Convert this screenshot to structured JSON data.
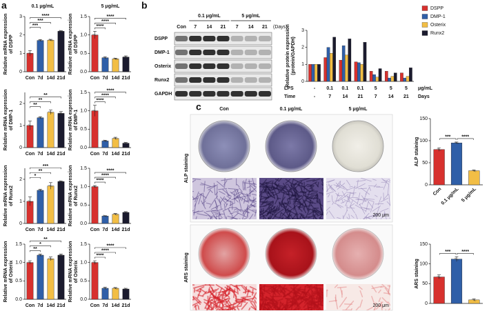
{
  "panel_a": {
    "label": "a",
    "columns": [
      "0.1 μg/mL",
      "5 μg/mL"
    ]
  },
  "panel_b": {
    "label": "b",
    "blot": {
      "groups": [
        "0.1 μg/mL",
        "5 μg/mL"
      ],
      "lanes": [
        "Con",
        "7",
        "14",
        "21",
        "7",
        "14",
        "21"
      ],
      "unit": "(Days)",
      "rows": [
        "DSPP",
        "DMP-1",
        "Osterix",
        "Runx2",
        "GAPDH"
      ]
    }
  },
  "panel_c": {
    "label": "c",
    "columns": [
      "Con",
      "0.1 μg/mL",
      "5 μg/mL"
    ],
    "rows": [
      "ALP staining",
      "ARS staining"
    ],
    "scale_bars": [
      "200 μm",
      "200 μm"
    ]
  },
  "chart_data": [
    {
      "type": "bar",
      "ylabel": [
        "Relative mRNA expression",
        "of DSPP"
      ],
      "categories": [
        "Con",
        "7d",
        "14d",
        "21d"
      ],
      "values": [
        1.0,
        1.7,
        1.72,
        2.2
      ],
      "errors": [
        0.15,
        0.05,
        0.04,
        0.03
      ],
      "colors": [
        "#d7312e",
        "#2f5fa8",
        "#f2be45",
        "#1b1b2e"
      ],
      "ylim": [
        0,
        3
      ],
      "yticks": [
        0,
        1,
        2,
        3
      ],
      "significance": [
        "***",
        "***",
        "****"
      ],
      "comparisons": "vs-first"
    },
    {
      "type": "bar",
      "ylabel": [
        "Relative mRNA expression",
        "of DMP-1"
      ],
      "categories": [
        "Con",
        "7d",
        "14d",
        "21d"
      ],
      "values": [
        1.0,
        1.35,
        1.6,
        1.55
      ],
      "errors": [
        0.2,
        0.05,
        0.1,
        0.08
      ],
      "colors": [
        "#d7312e",
        "#2f5fa8",
        "#f2be45",
        "#1b1b2e"
      ],
      "ylim": [
        0,
        2.5
      ],
      "yticks": [
        0,
        1,
        2
      ],
      "significance": [
        "**",
        "**",
        "**"
      ],
      "comparisons": "vs-first"
    },
    {
      "type": "bar",
      "ylabel": [
        "Relative mRNA expression",
        "of Runx2"
      ],
      "categories": [
        "Con",
        "7d",
        "14d",
        "21d"
      ],
      "values": [
        1.0,
        1.5,
        1.7,
        1.9
      ],
      "errors": [
        0.2,
        0.05,
        0.15,
        0.03
      ],
      "colors": [
        "#d7312e",
        "#2f5fa8",
        "#f2be45",
        "#1b1b2e"
      ],
      "ylim": [
        0,
        2.5
      ],
      "yticks": [
        0,
        1,
        2
      ],
      "significance": [
        "*",
        "**",
        "***"
      ],
      "comparisons": "vs-first"
    },
    {
      "type": "bar",
      "ylabel": [
        "Relative mRNA expression",
        "of Osterix"
      ],
      "categories": [
        "Con",
        "7d",
        "14d",
        "21d"
      ],
      "values": [
        1.0,
        1.2,
        1.1,
        1.2
      ],
      "errors": [
        0.05,
        0.03,
        0.05,
        0.03
      ],
      "colors": [
        "#d7312e",
        "#2f5fa8",
        "#f2be45",
        "#1b1b2e"
      ],
      "ylim": [
        0,
        1.5
      ],
      "yticks": [
        {
          "value": 0,
          "label": "0.0"
        },
        0.5,
        {
          "value": 1,
          "label": "1.0"
        },
        1.5
      ],
      "significance": [
        "**",
        "*",
        "**"
      ],
      "comparisons": "vs-first"
    },
    {
      "type": "bar",
      "ylabel": [
        "Relative mRNA expression",
        "of DSPP"
      ],
      "categories": [
        "Con",
        "7d",
        "14d",
        "21d"
      ],
      "values": [
        1.0,
        0.38,
        0.35,
        0.4
      ],
      "errors": [
        0.1,
        0.03,
        0.02,
        0.03
      ],
      "colors": [
        "#d7312e",
        "#2f5fa8",
        "#f2be45",
        "#1b1b2e"
      ],
      "ylim": [
        0,
        1.5
      ],
      "yticks": [
        {
          "value": 0,
          "label": "0.0"
        },
        0.5,
        {
          "value": 1,
          "label": "1.0"
        },
        1.5
      ],
      "significance": [
        "****",
        "****",
        "****"
      ],
      "comparisons": "vs-first"
    },
    {
      "type": "bar",
      "ylabel": [
        "Relative mRNA expression",
        "of DMP-1"
      ],
      "categories": [
        "Con",
        "7d",
        "14d",
        "21d"
      ],
      "values": [
        1.0,
        0.18,
        0.25,
        0.12
      ],
      "errors": [
        0.15,
        0.02,
        0.03,
        0.02
      ],
      "colors": [
        "#d7312e",
        "#2f5fa8",
        "#f2be45",
        "#1b1b2e"
      ],
      "ylim": [
        0,
        1.5
      ],
      "yticks": [
        {
          "value": 0,
          "label": "0.0"
        },
        0.5,
        {
          "value": 1,
          "label": "1.0"
        },
        1.5
      ],
      "significance": [
        "****",
        "****",
        "****"
      ],
      "comparisons": "vs-first"
    },
    {
      "type": "bar",
      "ylabel": [
        "Relative mRNA expression",
        "of Runx2"
      ],
      "categories": [
        "Con",
        "7d",
        "14d",
        "21d"
      ],
      "values": [
        1.0,
        0.2,
        0.25,
        0.3
      ],
      "errors": [
        0.03,
        0.01,
        0.02,
        0.02
      ],
      "colors": [
        "#d7312e",
        "#2f5fa8",
        "#f2be45",
        "#1b1b2e"
      ],
      "ylim": [
        0,
        1.5
      ],
      "yticks": [
        {
          "value": 0,
          "label": "0.0"
        },
        0.5,
        {
          "value": 1,
          "label": "1.0"
        },
        1.5
      ],
      "significance": [
        "****",
        "****",
        "****"
      ],
      "comparisons": "vs-first"
    },
    {
      "type": "bar",
      "ylabel": [
        "Relative mRNA expression",
        "of Osterix"
      ],
      "categories": [
        "Con",
        "7d",
        "14d",
        "21d"
      ],
      "values": [
        1.0,
        0.3,
        0.3,
        0.28
      ],
      "errors": [
        0.05,
        0.03,
        0.02,
        0.02
      ],
      "colors": [
        "#d7312e",
        "#2f5fa8",
        "#f2be45",
        "#1b1b2e"
      ],
      "ylim": [
        0,
        1.5
      ],
      "yticks": [
        {
          "value": 0,
          "label": "0.0"
        },
        0.5,
        {
          "value": 1,
          "label": "1.0"
        },
        1.5
      ],
      "significance": [
        "****",
        "****",
        "****"
      ],
      "comparisons": "vs-first"
    },
    {
      "type": "grouped-bar",
      "ylabel": [
        "Relative protein expression",
        "(protein/GAPDH)"
      ],
      "categories": [
        "-",
        "7",
        "14",
        "21",
        "7",
        "14",
        "21"
      ],
      "category_label": "Time",
      "category_unit": "Days",
      "dose": [
        "-",
        "0.1",
        "0.1",
        "0.1",
        "5",
        "5",
        "5"
      ],
      "dose_label": "LPS",
      "dose_unit": "μg/mL",
      "series": [
        {
          "name": "DSPP",
          "color": "#d7312e",
          "values": [
            1.0,
            1.4,
            1.25,
            1.15,
            0.6,
            0.6,
            0.5
          ]
        },
        {
          "name": "DMP-1",
          "color": "#2f5fa8",
          "values": [
            1.0,
            2.0,
            2.1,
            1.1,
            0.4,
            0.2,
            0.2
          ]
        },
        {
          "name": "Osterix",
          "color": "#f2be45",
          "values": [
            1.0,
            1.65,
            1.55,
            1.0,
            0.25,
            0.3,
            0.3
          ]
        },
        {
          "name": "Runx2",
          "color": "#1b1b2e",
          "values": [
            1.0,
            2.6,
            2.5,
            2.3,
            0.75,
            0.5,
            0.8
          ]
        }
      ],
      "ylim": [
        0,
        3
      ],
      "yticks": [
        0,
        1,
        2,
        3
      ],
      "legend": "top-right"
    },
    {
      "type": "bar",
      "ylabel": [
        "ALP staining"
      ],
      "categories": [
        "Con",
        "0.1 μg/mL",
        "5 μg/mL"
      ],
      "values": [
        80,
        95,
        32
      ],
      "errors": [
        4,
        2,
        2
      ],
      "colors": [
        "#d7312e",
        "#2f5fa8",
        "#f2be45"
      ],
      "ylim": [
        0,
        150
      ],
      "yticks": [
        0,
        50,
        100,
        150
      ],
      "significance": [
        "***",
        "****"
      ],
      "comparisons": "adjacent"
    },
    {
      "type": "bar",
      "ylabel": [
        "ARS staining"
      ],
      "categories": [
        null,
        null,
        null
      ],
      "values": [
        67,
        112,
        9
      ],
      "errors": [
        5,
        6,
        3
      ],
      "colors": [
        "#d7312e",
        "#2f5fa8",
        "#f2be45"
      ],
      "ylim": [
        0,
        150
      ],
      "yticks": [
        0,
        50,
        100,
        150
      ],
      "significance": [
        "***",
        "****"
      ],
      "comparisons": "adjacent"
    }
  ]
}
